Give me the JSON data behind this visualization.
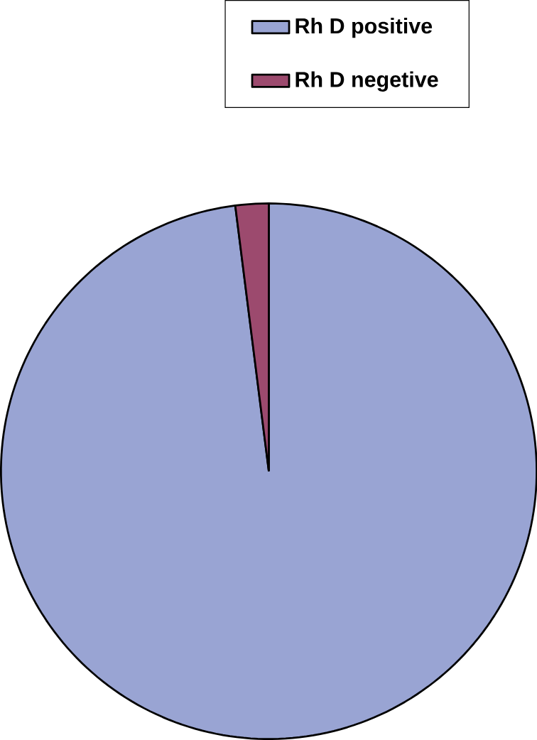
{
  "chart_data": {
    "type": "pie",
    "categories": [
      "Rh D positive",
      "Rh D negetive"
    ],
    "values": [
      98,
      2
    ],
    "colors": [
      "#99a4d3",
      "#9c4a6e"
    ],
    "legend": "top"
  }
}
